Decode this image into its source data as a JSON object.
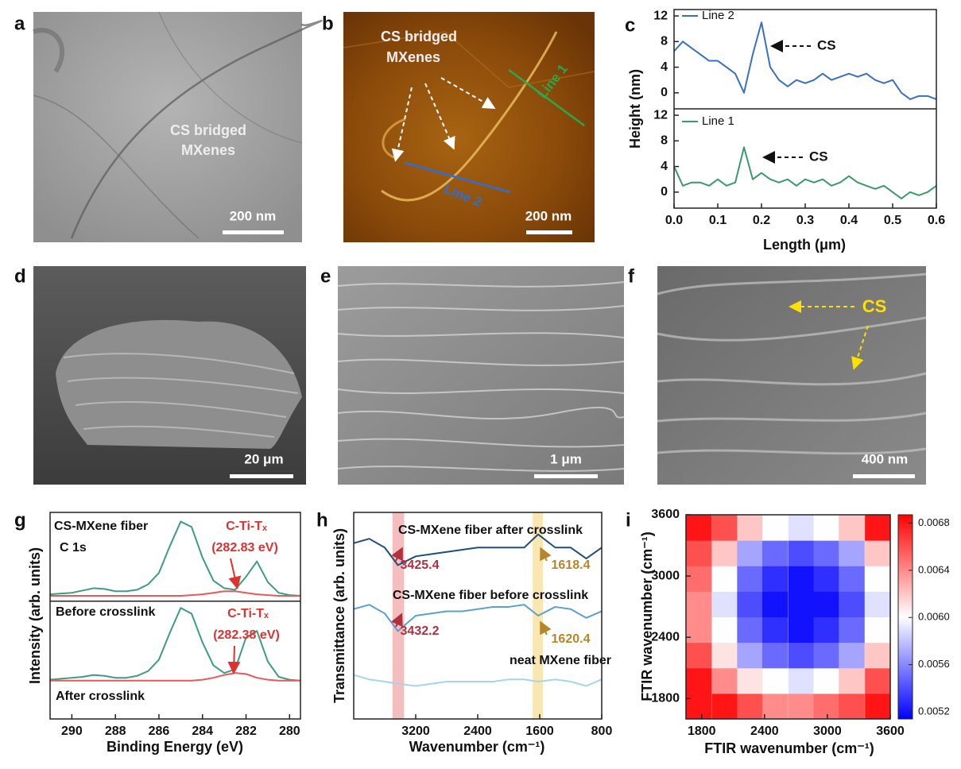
{
  "images": [
    {
      "letter": "a",
      "texts": [
        "CS bridged",
        "MXenes"
      ],
      "scale_bar": "200 nm"
    },
    {
      "letter": "b",
      "texts": [
        "CS bridged",
        "MXenes",
        "Line 1",
        "Line 2"
      ],
      "scale_bar": "200 nm"
    },
    {
      "letter": "d",
      "scale_bar": "20 μm"
    },
    {
      "letter": "e",
      "scale_bar": "1 μm"
    },
    {
      "letter": "f",
      "texts": [
        "CS"
      ],
      "scale_bar": "400 nm"
    }
  ],
  "chart_data": [
    {
      "type": "line",
      "panel": "c",
      "xlabel": "Length (μm)",
      "ylabel": "Height (nm)",
      "x": [
        0,
        0.02,
        0.04,
        0.06,
        0.08,
        0.1,
        0.12,
        0.14,
        0.16,
        0.18,
        0.2,
        0.22,
        0.24,
        0.26,
        0.28,
        0.3,
        0.32,
        0.34,
        0.36,
        0.38,
        0.4,
        0.42,
        0.44,
        0.46,
        0.48,
        0.5,
        0.52,
        0.54,
        0.56,
        0.58,
        0.6
      ],
      "xlim": [
        0,
        0.6
      ],
      "xticks": [
        {
          "value": 0,
          "label": "0.0"
        },
        0.1,
        0.2,
        0.3,
        0.4,
        0.5,
        0.6
      ],
      "subplots": [
        {
          "ylim": [
            -2.5,
            13
          ],
          "yticks": [
            0,
            4,
            8,
            12
          ],
          "annotation": "CS",
          "series": [
            {
              "name": "Line 2",
              "color": "#3a6fc4",
              "values": [
                6.5,
                8,
                7,
                6,
                5,
                5,
                4,
                3,
                0,
                6,
                11,
                4,
                2,
                1,
                2,
                1.5,
                2,
                3,
                2,
                2.5,
                3,
                2.5,
                3,
                2,
                1.5,
                2,
                0,
                -1,
                -0.5,
                -0.5,
                -1
              ]
            }
          ]
        },
        {
          "ylim": [
            -2.5,
            13
          ],
          "yticks": [
            0,
            4,
            8,
            12
          ],
          "annotation": "CS",
          "series": [
            {
              "name": "Line 1",
              "color": "#3a9a6a",
              "values": [
                4,
                1,
                1.5,
                1.5,
                1,
                2,
                1,
                1.5,
                7,
                2,
                3,
                2,
                1.5,
                2,
                1,
                2,
                1.5,
                2,
                1,
                1.5,
                2.5,
                1.5,
                1,
                0.5,
                1,
                0,
                -1,
                0,
                -0.5,
                0,
                1
              ]
            }
          ]
        }
      ]
    },
    {
      "type": "line",
      "panel": "g",
      "xlabel": "Binding Energy (eV)",
      "ylabel": "Intensity (arb. units)",
      "x": [
        291,
        290.5,
        290,
        289.5,
        289,
        288.5,
        288,
        287.5,
        287,
        286.5,
        286,
        285.5,
        285,
        284.5,
        284,
        283.5,
        283,
        282.5,
        282,
        281.5,
        281,
        280.5,
        280,
        279.5
      ],
      "xlim": [
        291,
        279.5
      ],
      "xticks": [
        290,
        288,
        286,
        284,
        282,
        280
      ],
      "labels": [
        "CS-MXene fiber",
        "C 1s",
        "C-Ti-Tₓ",
        "(282.83 eV)",
        "Before crosslink",
        "C-Ti-Tₓ",
        "(282.38 eV)",
        "After crosslink"
      ],
      "subplots": [
        {
          "ylim": [
            -7,
            109
          ],
          "series": [
            {
              "color": "#3d9c84",
              "values": [
                2,
                3,
                4,
                7,
                10,
                9,
                6,
                6,
                8,
                15,
                30,
                65,
                97,
                90,
                50,
                20,
                10,
                8,
                25,
                45,
                18,
                4,
                1,
                0
              ]
            },
            {
              "color": "#e85a5a",
              "values": [
                0,
                0,
                0,
                0,
                0,
                0,
                0,
                0,
                0,
                0,
                0,
                0,
                0,
                1,
                2,
                4,
                6,
                6,
                4,
                2,
                1,
                0,
                0,
                0
              ]
            }
          ]
        },
        {
          "ylim": [
            -40,
            83
          ],
          "series": [
            {
              "color": "#3d9c84",
              "values": [
                1,
                2,
                3,
                4,
                6,
                5,
                3,
                3,
                5,
                10,
                22,
                50,
                76,
                70,
                40,
                16,
                8,
                12,
                45,
                52,
                20,
                4,
                1,
                0
              ]
            },
            {
              "color": "#e85a5a",
              "values": [
                0,
                0,
                0,
                0,
                0,
                0,
                0,
                0,
                0,
                0,
                0,
                0,
                0,
                0,
                1,
                3,
                6,
                8,
                7,
                3,
                1,
                0,
                0,
                0
              ]
            }
          ]
        }
      ]
    },
    {
      "type": "line",
      "panel": "h",
      "xlabel": "Wavenumber (cm⁻¹)",
      "ylabel": "Transmittance (arb. units)",
      "x": [
        4000,
        3800,
        3600,
        3430,
        3200,
        3000,
        2800,
        2600,
        2400,
        2200,
        2000,
        1800,
        1620,
        1400,
        1200,
        1000,
        800
      ],
      "xlim": [
        4000,
        800
      ],
      "xticks": [
        3200,
        2400,
        1600,
        800
      ],
      "ylim": [
        0.2,
        9.6
      ],
      "bands": [
        {
          "from": 3500,
          "to": 3350,
          "color": "#f0a3a3"
        },
        {
          "from": 1690,
          "to": 1560,
          "color": "#f8dc90"
        }
      ],
      "series": [
        {
          "name": "CS-MXene fiber after crosslink",
          "color": "#1f4e79",
          "values": [
            8.2,
            8.4,
            8.0,
            7.2,
            7.6,
            7.7,
            7.8,
            7.9,
            8.0,
            8.0,
            8.0,
            8.0,
            8.6,
            8.0,
            8.0,
            7.5,
            8.0
          ],
          "peaks": [
            3425.4,
            1618.4
          ]
        },
        {
          "name": "CS-MXene fiber before crosslink",
          "color": "#5aa0d0",
          "values": [
            5.2,
            5.4,
            5.0,
            4.2,
            4.9,
            5.0,
            5.1,
            5.1,
            5.2,
            5.3,
            5.3,
            5.4,
            4.9,
            5.3,
            5.2,
            4.8,
            5.1
          ],
          "peaks": [
            3432.2,
            1620.4
          ]
        },
        {
          "name": "neat MXene fiber",
          "color": "#a8d4ea",
          "values": [
            2.2,
            2.0,
            1.9,
            1.8,
            1.7,
            1.8,
            1.9,
            1.9,
            1.9,
            1.9,
            2.0,
            2.0,
            1.9,
            2.0,
            1.9,
            1.7,
            2.0
          ]
        }
      ]
    },
    {
      "type": "heatmap",
      "panel": "i",
      "xlabel": "FTIR wavenumber (cm⁻¹)",
      "ylabel": "FTIR wavenumber (cm⁻¹)",
      "x": [
        1770,
        2020,
        2260,
        2500,
        2750,
        2990,
        3230,
        3480
      ],
      "y": [
        1725,
        1975,
        2225,
        2475,
        2725,
        2975,
        3225,
        3475
      ],
      "z": [
        [
          0.0068,
          0.0068,
          0.0066,
          0.0064,
          0.0064,
          0.0065,
          0.0066,
          0.0068
        ],
        [
          0.0068,
          0.0064,
          0.0061,
          0.006,
          0.0059,
          0.006,
          0.0062,
          0.0066
        ],
        [
          0.0066,
          0.0061,
          0.0057,
          0.0055,
          0.0054,
          0.0055,
          0.0057,
          0.0062
        ],
        [
          0.0064,
          0.006,
          0.0055,
          0.0053,
          0.0052,
          0.0053,
          0.0055,
          0.006
        ],
        [
          0.0064,
          0.0059,
          0.0054,
          0.0052,
          0.0052,
          0.0052,
          0.0054,
          0.0059
        ],
        [
          0.0065,
          0.006,
          0.0055,
          0.0053,
          0.0052,
          0.0053,
          0.0055,
          0.006
        ],
        [
          0.0066,
          0.0062,
          0.0057,
          0.0055,
          0.0054,
          0.0055,
          0.0057,
          0.0062
        ],
        [
          0.0068,
          0.0066,
          0.0062,
          0.006,
          0.0059,
          0.006,
          0.0062,
          0.0068
        ]
      ],
      "xlim": [
        1650,
        3600
      ],
      "ylim": [
        1600,
        3600
      ],
      "xticks": [
        1800,
        2400,
        3000,
        3600
      ],
      "yticks": [
        1800,
        2400,
        3000,
        3600
      ],
      "zlim": [
        0.00514,
        0.00687
      ],
      "zticks": [
        0.0052,
        0.0056,
        {
          "value": 0.006,
          "label": "0.0060"
        },
        0.0064,
        0.0068
      ],
      "colormap": [
        "#0000ff",
        "#ffffff",
        "#ff0000"
      ]
    }
  ]
}
